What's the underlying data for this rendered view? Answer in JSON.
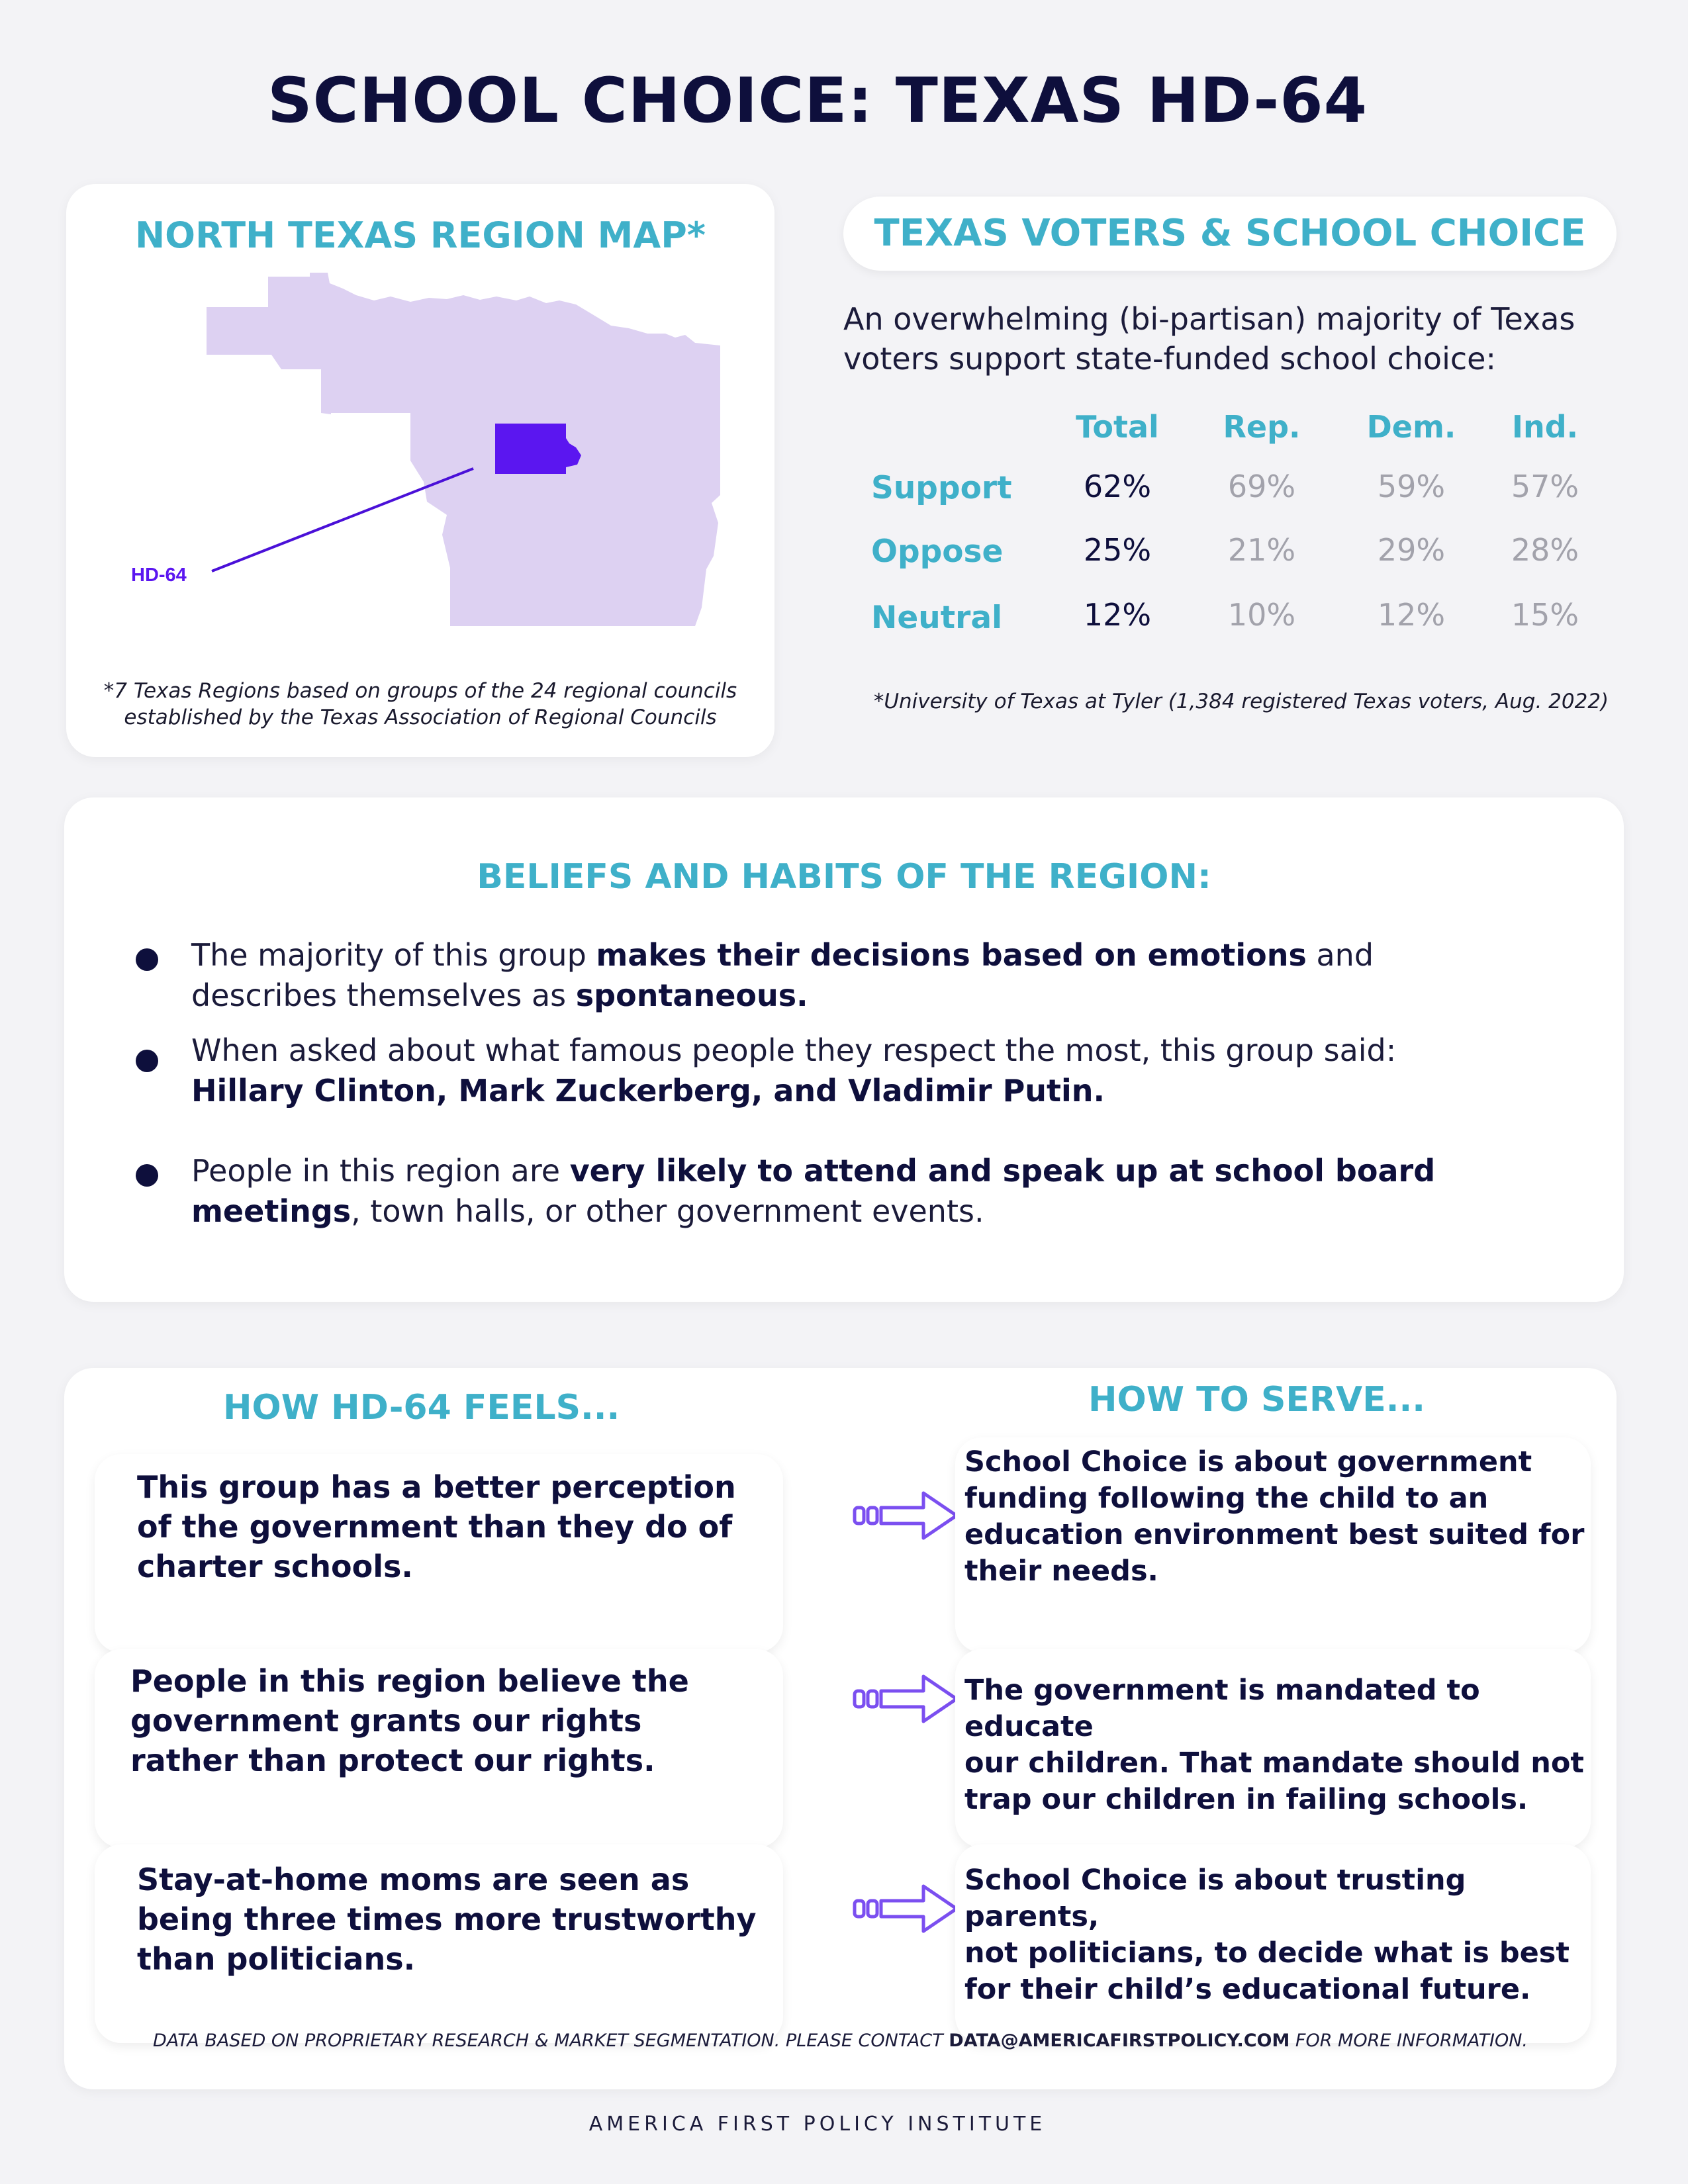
{
  "title": "SCHOOL CHOICE: TEXAS HD-64",
  "map": {
    "title": "NORTH TEXAS REGION MAP*",
    "district_label": "HD-64",
    "note_line1": "*7 Texas Regions based on groups of the 24 regional councils",
    "note_line2": "established by the Texas Association of Regional Councils",
    "region_color": "#ddd1f2",
    "district_color": "#5b16f0"
  },
  "voters": {
    "title": "TEXAS VOTERS & SCHOOL CHOICE",
    "intro_line1": "An overwhelming (bi-partisan) majority of Texas",
    "intro_line2": "voters support state-funded school choice:",
    "columns": [
      "Total",
      "Rep.",
      "Dem.",
      "Ind."
    ],
    "rows": [
      {
        "label": "Support",
        "values": [
          "62%",
          "69%",
          "59%",
          "57%"
        ]
      },
      {
        "label": "Oppose",
        "values": [
          "25%",
          "21%",
          "29%",
          "28%"
        ]
      },
      {
        "label": "Neutral",
        "values": [
          "12%",
          "10%",
          "12%",
          "15%"
        ]
      }
    ],
    "source": "*University of Texas at Tyler (1,384 registered Texas voters, Aug. 2022)"
  },
  "beliefs": {
    "title": "BELIEFS AND HABITS OF THE REGION:",
    "b1": {
      "p1": "The majority of this group ",
      "p2": "makes their decisions based on emotions",
      "p3": " and",
      "p4": "describes themselves as ",
      "p5": "spontaneous."
    },
    "b2": {
      "p1": "When asked about what famous people they respect the most, this group said:",
      "p2": "Hillary Clinton, Mark Zuckerberg, and Vladimir Putin."
    },
    "b3": {
      "p1": "People in this region are ",
      "p2": "very likely to attend and speak up at school board",
      "p3": "meetings",
      "p4": ", town halls, or other government events."
    }
  },
  "feels": {
    "title": "HOW HD-64 FEELS...",
    "items": [
      {
        "line1": "This group has a better perception",
        "line2": "of the government than they do of",
        "line3": "charter schools."
      },
      {
        "line1": "People in this region believe the",
        "line2": "government grants our rights",
        "line3": "rather than protect our rights."
      },
      {
        "line1": "Stay-at-home moms are seen as",
        "line2": "being three times more trustworthy",
        "line3": "than politicians."
      }
    ]
  },
  "serve": {
    "title": "HOW TO SERVE...",
    "items": [
      {
        "line1": "School Choice is about government",
        "line2": "funding following the child to an",
        "line3": "education environment best suited for",
        "line4": "their needs."
      },
      {
        "line1": "The government is mandated to educate",
        "line2": "our children. That mandate should not",
        "line3": "trap our children in failing schools."
      },
      {
        "line1": "School Choice is about trusting parents,",
        "line2": "not politicians, to decide what is best",
        "line3": "for their child’s educational future."
      }
    ]
  },
  "footnote": {
    "p1": "DATA BASED ON PROPRIETARY RESEARCH & MARKET SEGMENTATION. PLEASE CONTACT ",
    "email": "DATA@AMERICAFIRSTPOLICY.COM",
    "p2": " FOR MORE INFORMATION."
  },
  "organization": "AMERICA FIRST POLICY INSTITUTE",
  "colors": {
    "navy": "#0e0f3c",
    "teal": "#3fb0c9",
    "purple_arrow": "#7b4ff0",
    "grey_text": "#a2a2ab"
  },
  "icons": [
    "arrow-right-icon"
  ]
}
